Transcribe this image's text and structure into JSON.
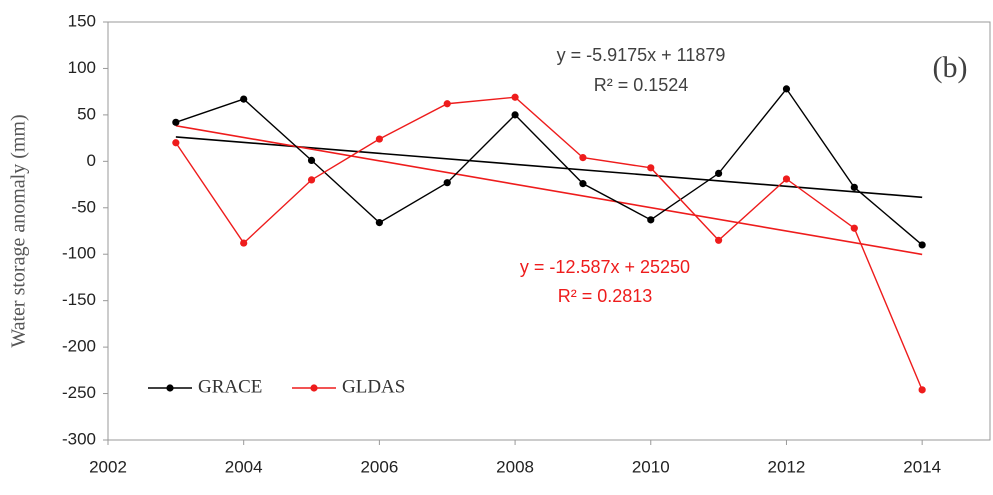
{
  "chart_data": {
    "type": "line",
    "y_label": "Water storage anomaly (mm)",
    "x": [
      2003,
      2004,
      2005,
      2006,
      2007,
      2008,
      2009,
      2010,
      2011,
      2012,
      2013,
      2014
    ],
    "series": [
      {
        "name": "GRACE",
        "color": "#000000",
        "values": [
          42,
          67,
          1,
          -66,
          -23,
          50,
          -24,
          -63,
          -13,
          78,
          -28,
          -90
        ]
      },
      {
        "name": "GLDAS",
        "color": "#ee1c1c",
        "values": [
          20,
          -88,
          -20,
          24,
          62,
          69,
          4,
          -7,
          -85,
          -19,
          -72,
          -246
        ]
      }
    ],
    "trendlines": [
      {
        "color": "#000000",
        "x": [
          2003,
          2014
        ],
        "values": [
          26.3,
          -38.7
        ]
      },
      {
        "color": "#ee1c1c",
        "x": [
          2003,
          2014
        ],
        "values": [
          38.3,
          -100.2
        ]
      }
    ],
    "annotations": [
      {
        "text": "y = -5.9175x + 11879",
        "color": "#404040"
      },
      {
        "text": "R² = 0.1524",
        "color": "#404040"
      },
      {
        "text": "y = -12.587x + 25250",
        "color": "#ee1c1c"
      },
      {
        "text": "R² = 0.2813",
        "color": "#ee1c1c"
      },
      {
        "text": "(b)",
        "color": "#404040"
      }
    ],
    "xlim": [
      2002,
      2015
    ],
    "xticks": [
      2002,
      2004,
      2006,
      2008,
      2010,
      2012,
      2014
    ],
    "ylim": [
      -300,
      150
    ],
    "yticks": [
      -300,
      -250,
      -200,
      -150,
      -100,
      -50,
      0,
      50,
      100,
      150
    ],
    "grid": false,
    "legend": "lower left"
  }
}
